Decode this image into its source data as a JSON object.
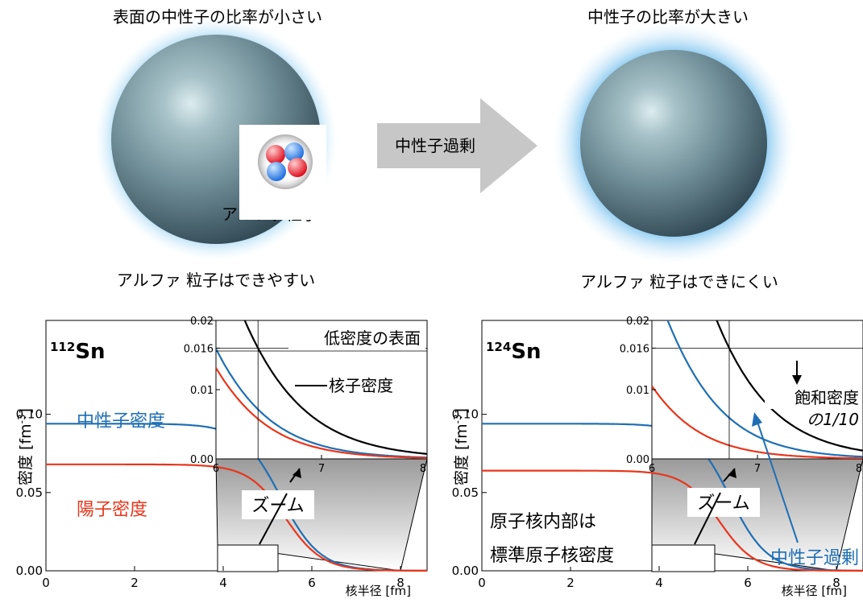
{
  "top": {
    "left_caption_top": "表面の中性子の比率が小さい",
    "left_caption_bottom": "アルファ 粒子はできやすい",
    "alpha_label": "アルファ粒子",
    "arrow_label": "中性子過剰",
    "right_caption_top": "中性子の比率が大きい",
    "right_caption_bottom": "アルファ 粒子はできにくい"
  },
  "colors": {
    "neutron": "#1f6fb4",
    "proton": "#e8361c",
    "nucleon": "#000000"
  },
  "chart_data": [
    {
      "type": "line",
      "title_mass": "112",
      "title_elem": "Sn",
      "ylabel": "密度",
      "yunit_pre": "[fm",
      "yunit_sup": "-3",
      "yunit_post": "]",
      "xlabel": "核半径 [fm]",
      "xlim": [
        0,
        8.6
      ],
      "ylim": [
        0,
        0.16
      ],
      "xticks": [
        "0",
        "2",
        "4",
        "6",
        "8"
      ],
      "yticks": [
        "0.00",
        "0.05",
        "0.10"
      ],
      "series": [
        {
          "name": "中性子密度",
          "R": 5.3,
          "a": 0.44,
          "rho0": 0.094
        },
        {
          "name": "陽子密度",
          "R": 5.4,
          "a": 0.42,
          "rho0": 0.068
        }
      ],
      "zoom_label": "ズーム",
      "inset": {
        "xlim": [
          6,
          8
        ],
        "ylim": [
          0,
          0.02
        ],
        "xticks": [
          "6",
          "7",
          "8"
        ],
        "yticks": [
          "0.00",
          "0.01",
          "0.016",
          "0.02"
        ],
        "title": "低密度の表面",
        "nucleon_label": "核子密度",
        "nucleon": {
          "R": 5.3,
          "a": 0.5,
          "rho0": 0.16
        }
      }
    },
    {
      "type": "line",
      "title_mass": "124",
      "title_elem": "Sn",
      "ylabel": "密度",
      "yunit_pre": "[fm",
      "yunit_sup": "-3",
      "yunit_post": "]",
      "xlabel": "核半径 [fm]",
      "xlim": [
        0,
        8.6
      ],
      "ylim": [
        0,
        0.16
      ],
      "xticks": [
        "0",
        "2",
        "4",
        "6",
        "8"
      ],
      "yticks": [
        "0.00",
        "0.05",
        "0.10"
      ],
      "series": [
        {
          "name": "中性子密度",
          "R": 5.6,
          "a": 0.42,
          "rho0": 0.094
        },
        {
          "name": "陽子密度",
          "R": 5.35,
          "a": 0.4,
          "rho0": 0.064
        }
      ],
      "zoom_label": "ズーム",
      "annot_core_1": "原子核内部は",
      "annot_core_2": "標準原子核密度",
      "annot_excess": "中性子過剰",
      "inset": {
        "xlim": [
          6,
          8
        ],
        "ylim": [
          0,
          0.02
        ],
        "xticks": [
          "6",
          "7",
          "8"
        ],
        "yticks": [
          "0.00",
          "0.01",
          "0.016",
          "0.02"
        ],
        "sat_label_1": "飽和密度",
        "sat_label_2": "の1/10",
        "nucleon": {
          "R": 5.7,
          "a": 0.47,
          "rho0": 0.16
        }
      }
    }
  ]
}
